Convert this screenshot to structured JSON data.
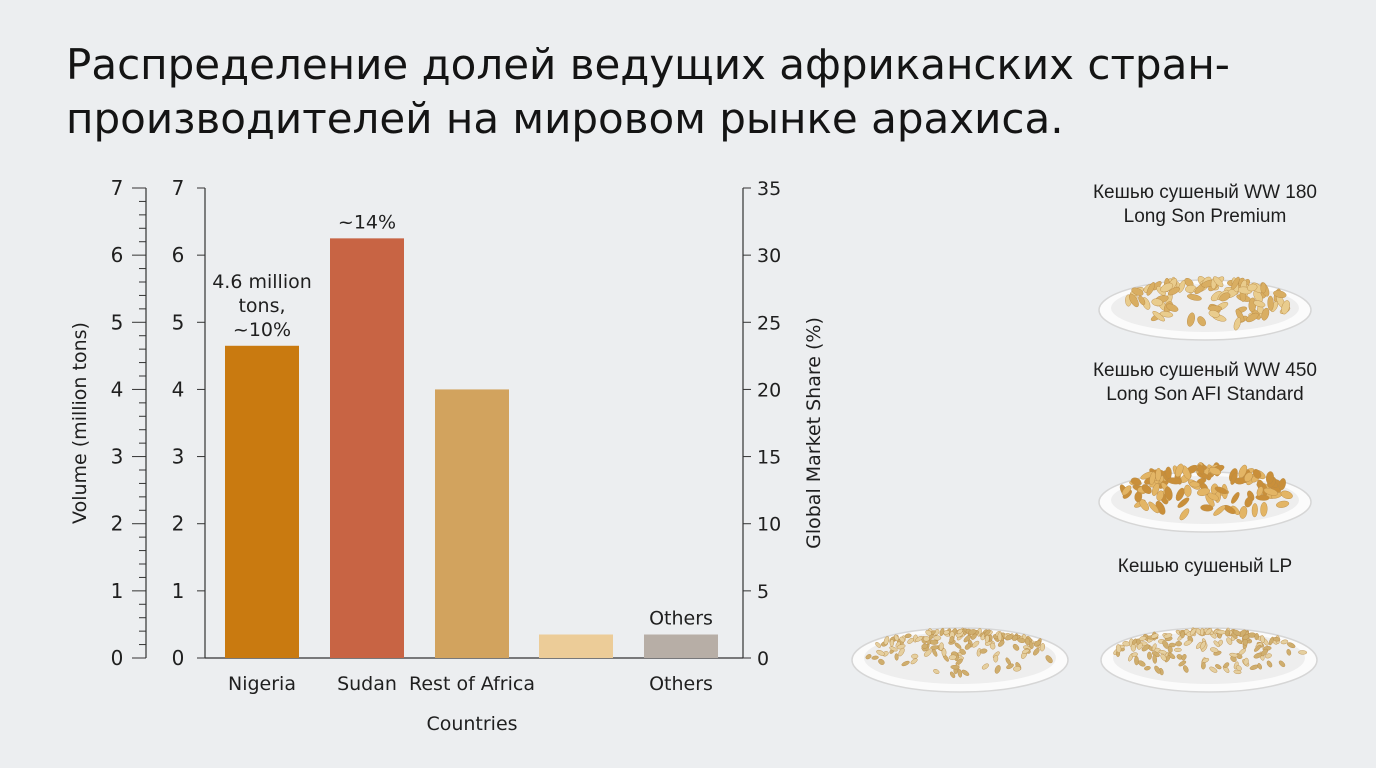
{
  "title": "Распределение долей ведущих африканских стран-производителей на мировом рынке арахиса.",
  "chart_data": {
    "type": "bar",
    "title": "Распределение долей ведущих африканских стран-производителей на мировом рынке арахиса.",
    "categories": [
      "Nigeria",
      "Sudan",
      "Rest of Africa",
      "",
      "Others"
    ],
    "values": [
      4.65,
      6.25,
      4.0,
      0.35,
      0.35
    ],
    "colors": [
      "#c97a10",
      "#c86444",
      "#d2a35e",
      "#eccc98",
      "#b7aea6"
    ],
    "xlabel": "Countries",
    "ylabel": "Volume (million tons)",
    "ylabel_right": "Global Market Share (%)",
    "ylim": [
      0,
      7
    ],
    "ylim_right": [
      0,
      35
    ],
    "yticks": [
      "0",
      "1",
      "2",
      "3",
      "4",
      "5",
      "6",
      "7"
    ],
    "yticks_right": [
      "0",
      "5",
      "10",
      "15",
      "20",
      "25",
      "30",
      "35"
    ],
    "bar_labels": [
      [
        "4.6 million",
        "tons,",
        "~10%"
      ],
      [
        "~14%"
      ],
      [],
      [],
      [
        "Others"
      ]
    ],
    "grid": false,
    "legend": "none"
  },
  "products": [
    {
      "name_lines": [
        "Кешью сушеный WW 180",
        "Long Son Premium"
      ]
    },
    {
      "name_lines": [
        "Кешью сушеный WW 450",
        "Long Son AFI Standard"
      ]
    },
    {
      "name_lines": [
        "Кешью сушеный LP"
      ]
    }
  ]
}
